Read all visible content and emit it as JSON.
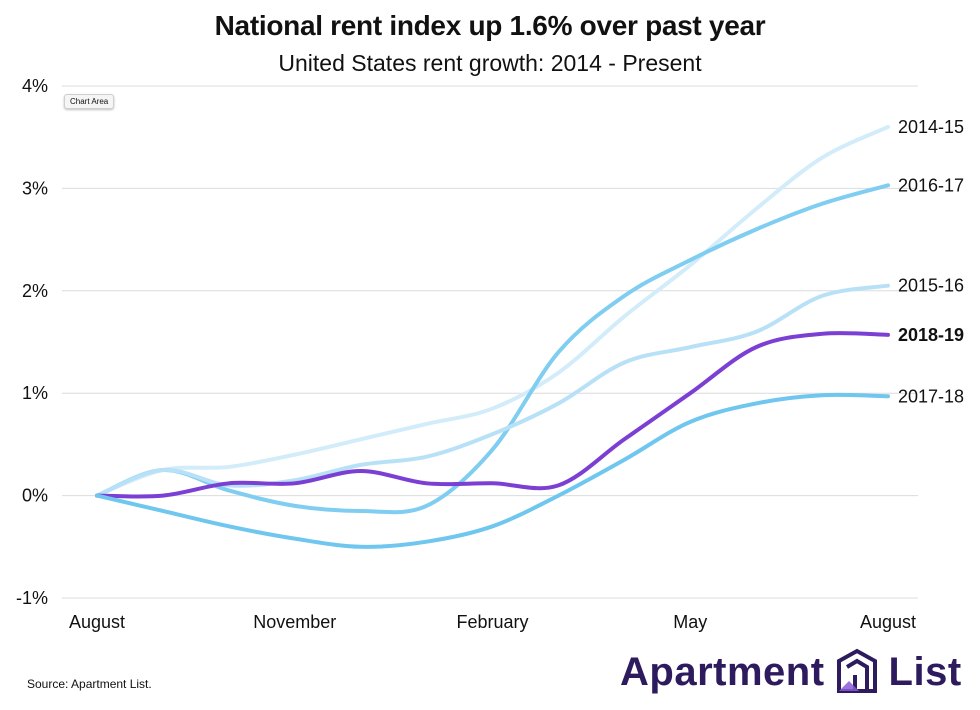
{
  "header": {
    "title": "National rent index up 1.6% over past year",
    "subtitle": "United States rent growth: 2014 - Present"
  },
  "chart_area_label": "Chart Area",
  "source": "Source: Apartment List.",
  "logo": {
    "left_word": "Apartment",
    "right_word": "List",
    "mark_icon": "apartment-list-logo-icon",
    "color": "#2d1b5e"
  },
  "chart_data": {
    "type": "line",
    "title": "National rent index up 1.6% over past year",
    "subtitle": "United States rent growth: 2014 - Present",
    "x": [
      0,
      1,
      2,
      3,
      4,
      5,
      6,
      7,
      8,
      9,
      10,
      11,
      12
    ],
    "x_tick_positions": [
      0,
      3,
      6,
      9,
      12
    ],
    "x_tick_labels": [
      "August",
      "November",
      "February",
      "May",
      "August"
    ],
    "ylim": [
      -1,
      4
    ],
    "y_ticks": [
      -1,
      0,
      1,
      2,
      3,
      4
    ],
    "y_tick_labels": [
      "-1%",
      "0%",
      "1%",
      "2%",
      "3%",
      "4%"
    ],
    "grid": true,
    "legend": "inline labels at line ends (right)",
    "series": [
      {
        "name": "2014-15",
        "color": "#d3ecfa",
        "bold": false,
        "values": [
          0,
          0.25,
          0.28,
          0.4,
          0.55,
          0.7,
          0.85,
          1.2,
          1.75,
          2.25,
          2.8,
          3.3,
          3.6
        ]
      },
      {
        "name": "2016-17",
        "color": "#7fcdf0",
        "bold": false,
        "values": [
          0,
          0.25,
          0.05,
          -0.1,
          -0.15,
          -0.1,
          0.45,
          1.4,
          1.95,
          2.3,
          2.6,
          2.85,
          3.03
        ]
      },
      {
        "name": "2015-16",
        "color": "#b8e1f7",
        "bold": false,
        "values": [
          0,
          0.25,
          0.1,
          0.15,
          0.3,
          0.38,
          0.6,
          0.9,
          1.3,
          1.45,
          1.6,
          1.95,
          2.05
        ]
      },
      {
        "name": "2018-19",
        "color": "#7b3fd4",
        "bold": true,
        "values": [
          0,
          0.0,
          0.12,
          0.12,
          0.24,
          0.12,
          0.12,
          0.1,
          0.55,
          1.0,
          1.45,
          1.58,
          1.57
        ]
      },
      {
        "name": "2017-18",
        "color": "#6fc6ee",
        "bold": false,
        "values": [
          0,
          -0.15,
          -0.3,
          -0.42,
          -0.5,
          -0.45,
          -0.3,
          0.0,
          0.35,
          0.72,
          0.9,
          0.98,
          0.97
        ]
      }
    ]
  }
}
